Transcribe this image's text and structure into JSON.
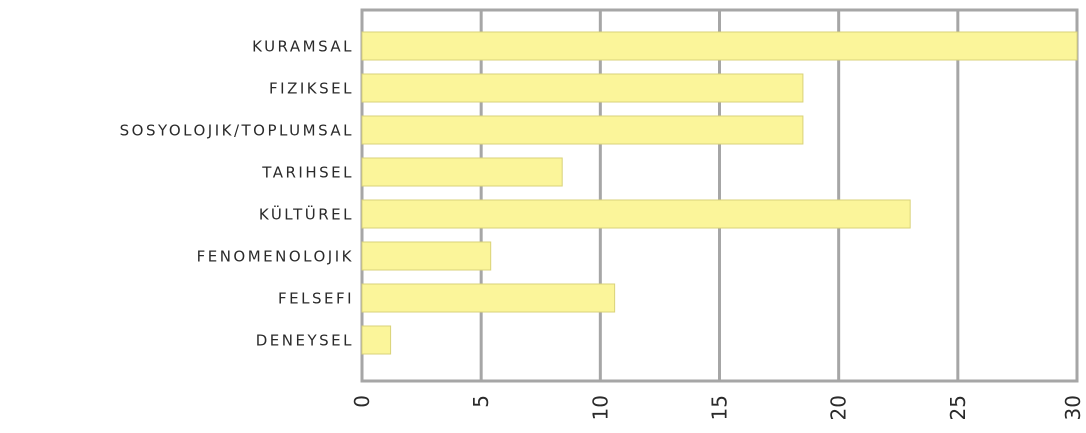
{
  "chart_data": {
    "type": "bar",
    "orientation": "horizontal",
    "categories": [
      "KURAMSAL",
      "FIZIKSEL",
      "SOSYOLOJIK/TOPLUMSAL",
      "TARIHSEL",
      "KÜLTÜREL",
      "FENOMENOLOJIK",
      "FELSEFI",
      "DENEYSEL"
    ],
    "values": [
      30,
      18.5,
      18.5,
      8.4,
      23,
      5.4,
      10.6,
      1.2
    ],
    "xlim": [
      0,
      30
    ],
    "xticks": [
      "0",
      "5",
      "10",
      "15",
      "20",
      "25",
      "30"
    ],
    "grid": true,
    "title": "",
    "xlabel": "",
    "ylabel": "",
    "colors": {
      "bar": "#fbf59a",
      "bar_edge": "#d9d27a",
      "grid": "#a6a6a6"
    }
  }
}
